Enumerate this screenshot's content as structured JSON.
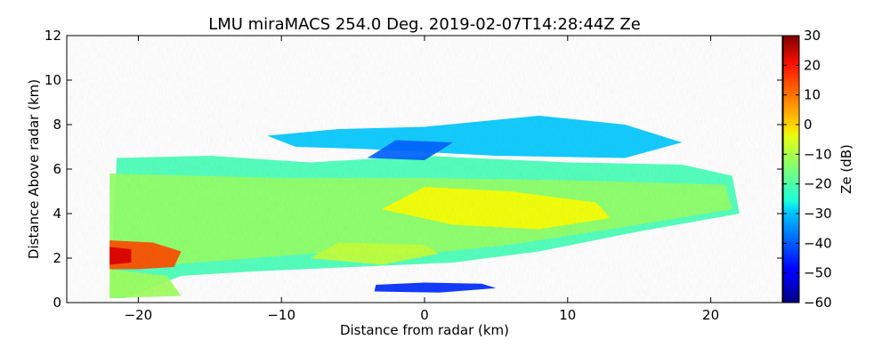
{
  "chart_data": {
    "type": "heatmap",
    "title": "LMU miraMACS 254.0 Deg. 2019-02-07T14:28:44Z  Ze",
    "xlabel": "Distance from radar (km)",
    "ylabel": "Distance Above radar  (km)",
    "xlim": [
      -25,
      25
    ],
    "ylim": [
      0,
      12
    ],
    "xticks": [
      -20,
      -10,
      0,
      10,
      20
    ],
    "xtick_labels": [
      "−20",
      "−10",
      "0",
      "10",
      "20"
    ],
    "yticks": [
      0,
      2,
      4,
      6,
      8,
      10,
      12
    ],
    "ytick_labels": [
      "0",
      "2",
      "4",
      "6",
      "8",
      "10",
      "12"
    ],
    "colorbar": {
      "label": "Ze (dB)",
      "colormap": "jet",
      "range": [
        -60,
        30
      ],
      "ticks": [
        -60,
        -50,
        -40,
        -30,
        -20,
        -10,
        0,
        10,
        20,
        30
      ],
      "tick_labels": [
        "−60",
        "−50",
        "−40",
        "−30",
        "−20",
        "−10",
        "0",
        "10",
        "20",
        "30"
      ]
    },
    "regions": [
      {
        "x": [
          -22,
          22
        ],
        "y": [
          1.5,
          6.5
        ],
        "ze_approx": -15
      },
      {
        "x": [
          0,
          10
        ],
        "y": [
          3.5,
          5
        ],
        "ze_approx": -5
      },
      {
        "x": [
          -22,
          -17
        ],
        "y": [
          1.5,
          2.8
        ],
        "ze_approx": 15
      },
      {
        "x": [
          -10,
          15
        ],
        "y": [
          6,
          8.5
        ],
        "ze_approx": -30
      },
      {
        "x": [
          -3,
          5
        ],
        "y": [
          0.4,
          0.8
        ],
        "ze_approx": -45
      }
    ]
  }
}
